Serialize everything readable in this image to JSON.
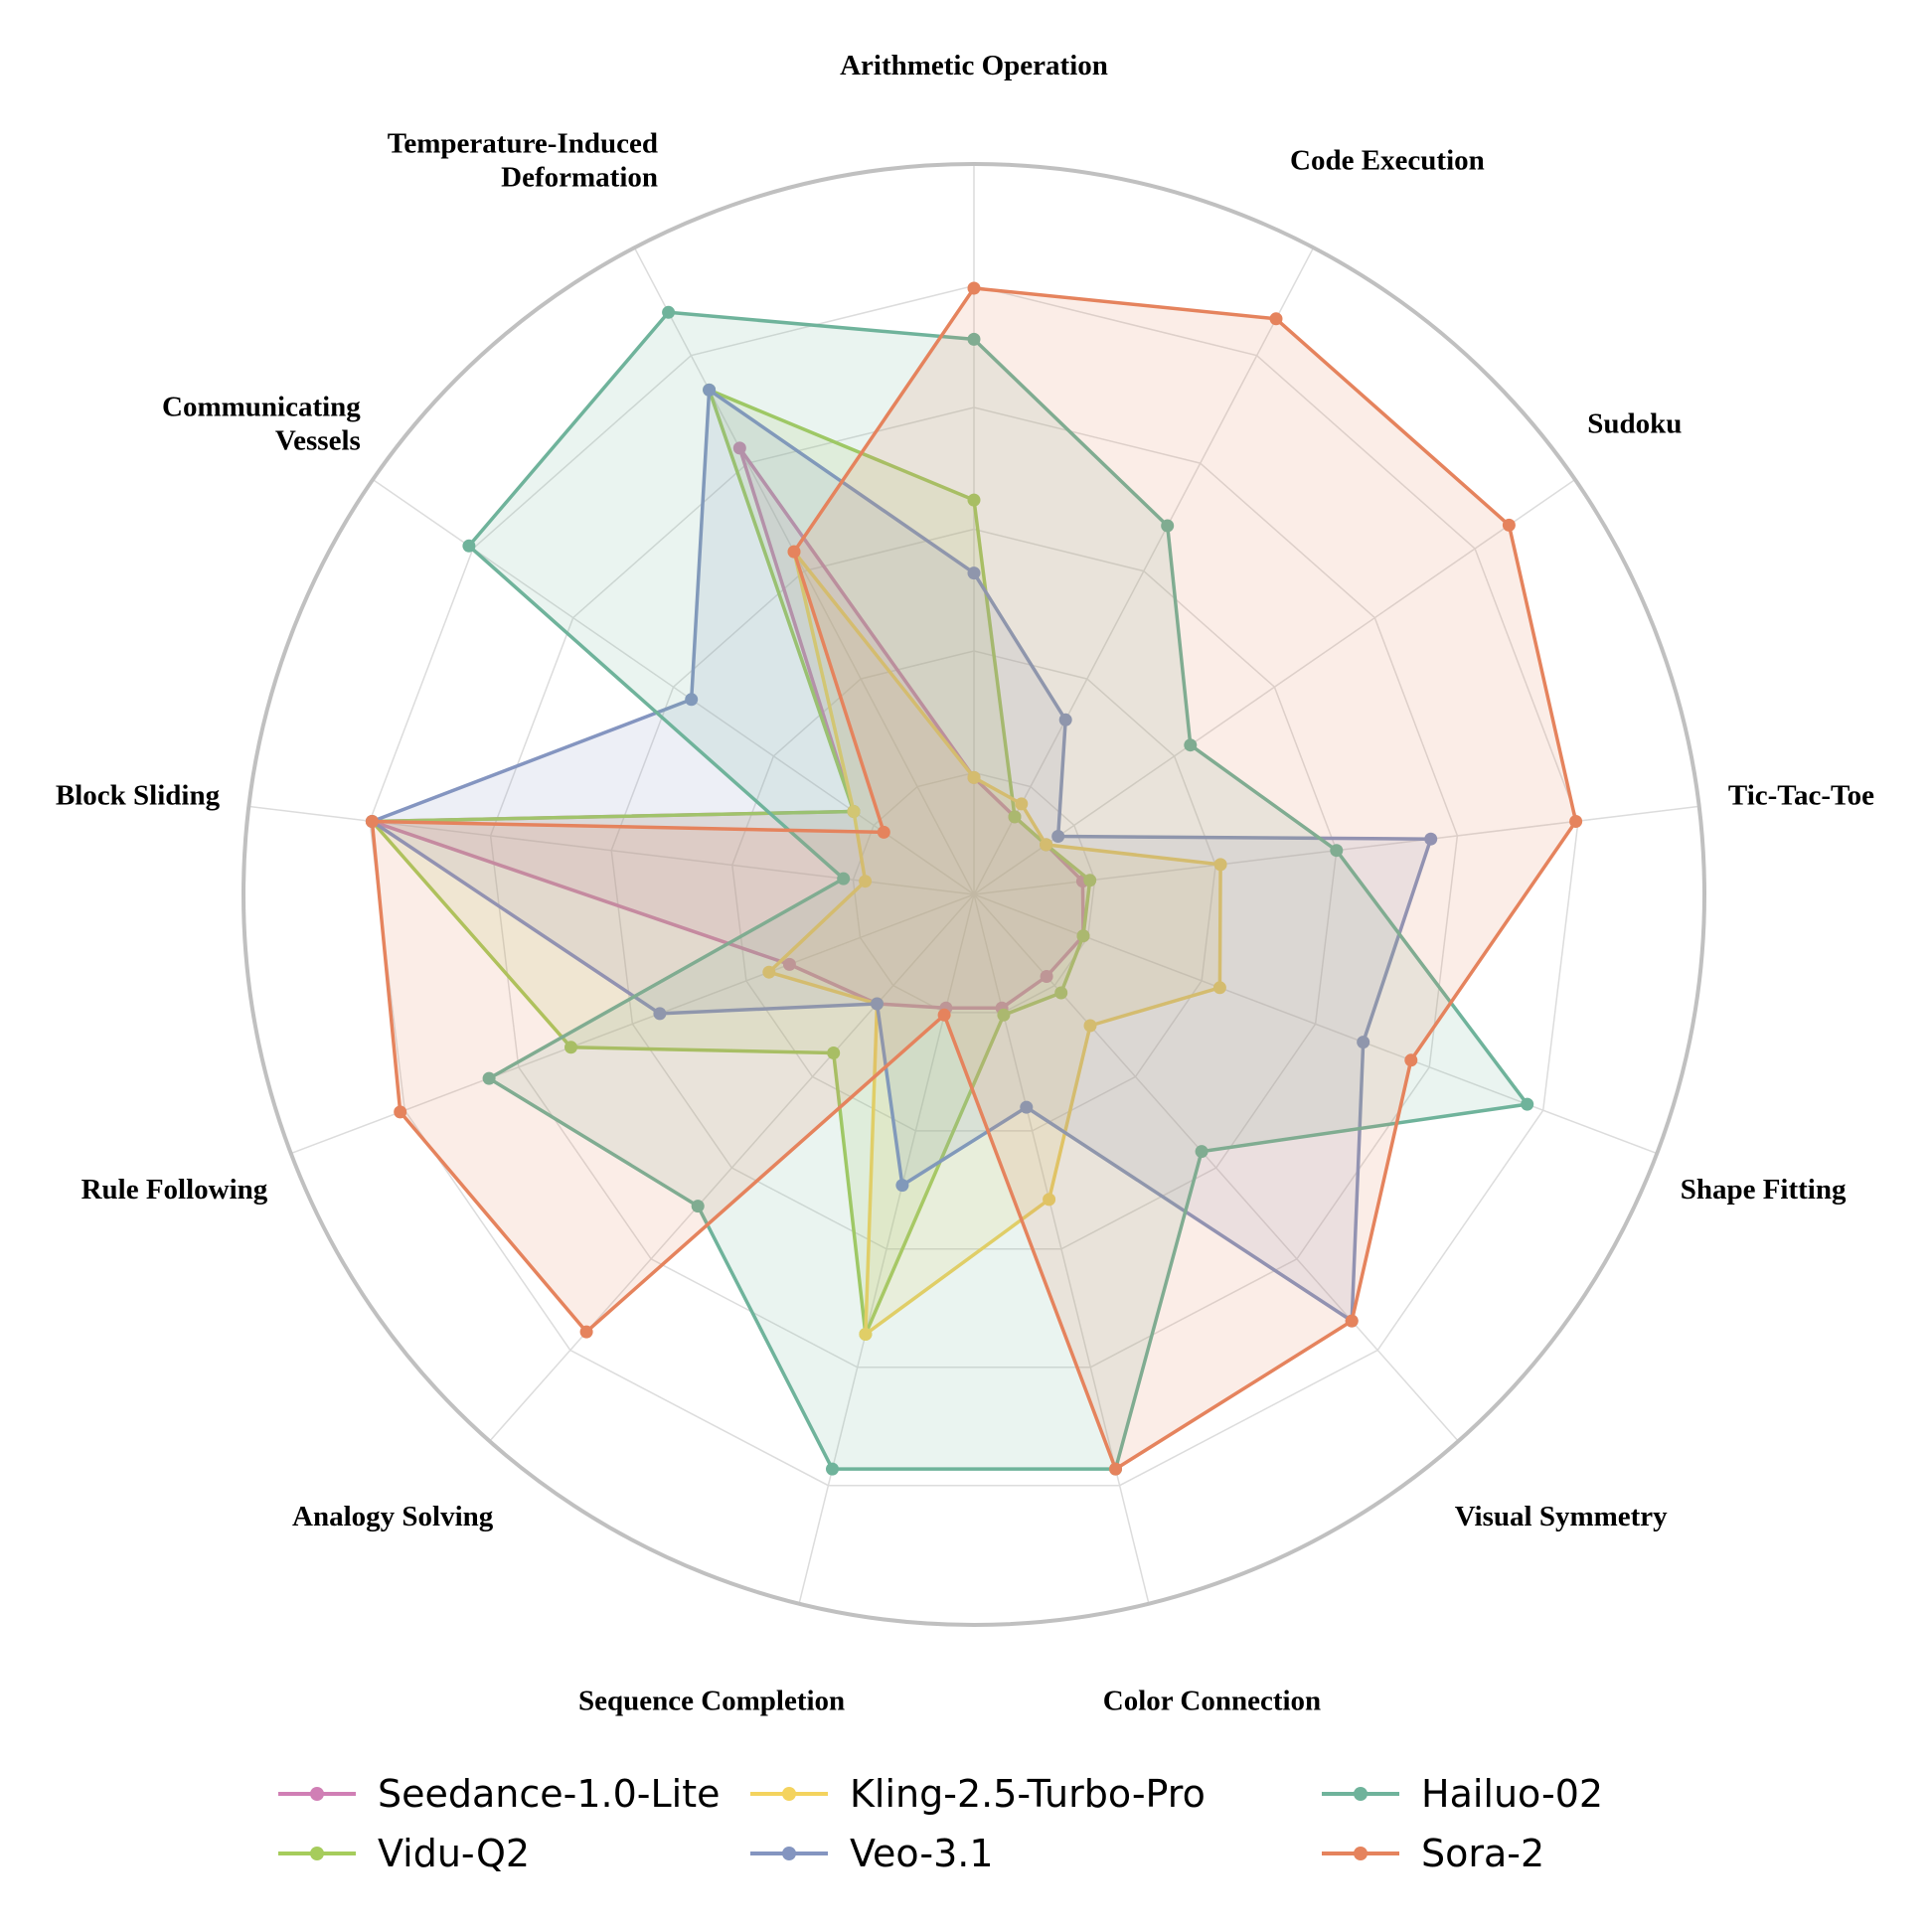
{
  "chart_data": {
    "type": "radar",
    "title": "",
    "axes": [
      "Arithmetic Operation",
      "Code Execution",
      "Sudoku",
      "Tic-Tac-Toe",
      "Shape Fitting",
      "Visual Symmetry",
      "Color Connection",
      "Sequence Completion",
      "Analogy Solving",
      "Rule Following",
      "Block Sliding",
      "Communicating Vessels",
      "Temperature-Induced Deformation"
    ],
    "axis_label_lines": [
      [
        "Arithmetic Operation"
      ],
      [
        "Code Execution"
      ],
      [
        "Sudoku"
      ],
      [
        "Tic-Tac-Toe"
      ],
      [
        "Shape Fitting"
      ],
      [
        "Visual Symmetry"
      ],
      [
        "Color Connection"
      ],
      [
        "Sequence Completion"
      ],
      [
        "Analogy Solving"
      ],
      [
        "Rule Following"
      ],
      [
        "Block Sliding"
      ],
      [
        "Communicating",
        "Vessels"
      ],
      [
        "Temperature-Induced",
        "Deformation"
      ]
    ],
    "range": [
      0,
      1
    ],
    "grid": true,
    "grid_levels": 6,
    "legend_position": "bottom",
    "series": [
      {
        "name": "Seedance-1.0-Lite",
        "color": "#d07fb5",
        "values": [
          0.16,
          0.12,
          0.12,
          0.15,
          0.16,
          0.15,
          0.16,
          0.16,
          0.2,
          0.27,
          0.83,
          0.2,
          0.69
        ]
      },
      {
        "name": "Vidu-Q2",
        "color": "#a6cc5c",
        "values": [
          0.54,
          0.12,
          0.12,
          0.16,
          0.16,
          0.18,
          0.17,
          0.62,
          0.29,
          0.59,
          0.83,
          0.2,
          0.78
        ]
      },
      {
        "name": "Kling-2.5-Turbo-Pro",
        "color": "#f4d35e",
        "values": [
          0.16,
          0.14,
          0.12,
          0.34,
          0.36,
          0.24,
          0.43,
          0.62,
          0.2,
          0.3,
          0.15,
          0.2,
          0.53
        ]
      },
      {
        "name": "Veo-3.1",
        "color": "#8495c0",
        "values": [
          0.44,
          0.27,
          0.14,
          0.63,
          0.57,
          0.78,
          0.3,
          0.41,
          0.2,
          0.46,
          0.83,
          0.47,
          0.78
        ]
      },
      {
        "name": "Hailuo-02",
        "color": "#6fb39b",
        "values": [
          0.76,
          0.57,
          0.36,
          0.5,
          0.81,
          0.47,
          0.81,
          0.81,
          0.57,
          0.71,
          0.18,
          0.84,
          0.9
        ]
      },
      {
        "name": "Sora-2",
        "color": "#e5835d",
        "values": [
          0.83,
          0.89,
          0.89,
          0.83,
          0.64,
          0.78,
          0.81,
          0.17,
          0.8,
          0.84,
          0.83,
          0.15,
          0.53
        ]
      }
    ]
  }
}
